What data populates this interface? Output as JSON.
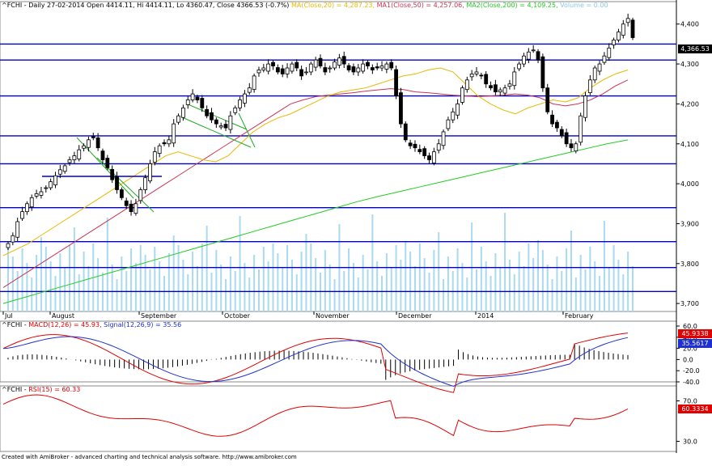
{
  "header": {
    "symbol": "^FCHI",
    "info": "^FCHI - Daily 27-02-2014 Open 4414.11, Hi 4414.11, Lo 4360.47, Close 4366.53 (-0.7%)",
    "ma20": "MA(Close,20) = 4,287.23,",
    "ma50": "MA1(Close,50) = 4,257.06,",
    "ma200": "MA2(Close,200) = 4,109.25,",
    "volume": "Volume = 0.00"
  },
  "colors": {
    "ma20": "#e8b800",
    "ma50": "#cc3355",
    "ma200": "#22cc22",
    "volume": "#aadaf0",
    "hlines": "#0000cc",
    "macd": "#e00000",
    "signal": "#2030d0",
    "rsi": "#e00000",
    "trend_channel": "#22aa22"
  },
  "price_axis": [
    "4,400",
    "4,300",
    "4,200",
    "4,100",
    "4,000",
    "3,900",
    "3,800",
    "3,700"
  ],
  "last_price_label": "4,366.53",
  "x_labels": [
    "Jul",
    "August",
    "September",
    "October",
    "November",
    "December",
    "2014",
    "February"
  ],
  "macd_panel": {
    "title_prefix": "^FCHI - ",
    "macd_label": "MACD(12,26) = 45.93,",
    "signal_label": "Signal(12,26,9) = 35.56",
    "axis": [
      "60.0",
      "40.0",
      "20.0",
      "0.0",
      "-20.0",
      "-40.0"
    ],
    "macd_box": "45.9338",
    "signal_box": "35.5617"
  },
  "rsi_panel": {
    "title_prefix": "^FCHI - ",
    "rsi_label": "RSI(15) = 60.33",
    "axis": [
      "70.0",
      "30.0"
    ],
    "rsi_box": "60.3334"
  },
  "footer": "Created with AmiBroker - advanced charting and technical analysis software. http://www.amibroker.com",
  "chart_data": {
    "type": "candlestick",
    "title": "^FCHI - Daily 27-02-2014",
    "ylim": [
      3680,
      4440
    ],
    "support_resistance_levels": [
      4350,
      4310,
      4220,
      4120,
      4050,
      3940,
      3855,
      3790,
      3730
    ],
    "closes": [
      3850,
      3870,
      3905,
      3930,
      3950,
      3965,
      3975,
      3980,
      3990,
      4005,
      4020,
      4035,
      4045,
      4060,
      4070,
      4085,
      4095,
      4110,
      4115,
      4090,
      4060,
      4040,
      4010,
      3985,
      3965,
      3945,
      3930,
      3950,
      3985,
      4015,
      4050,
      4080,
      4095,
      4100,
      4110,
      4150,
      4170,
      4190,
      4210,
      4225,
      4210,
      4190,
      4170,
      4160,
      4150,
      4145,
      4140,
      4170,
      4190,
      4210,
      4225,
      4240,
      4270,
      4285,
      4290,
      4300,
      4295,
      4280,
      4275,
      4290,
      4300,
      4290,
      4270,
      4280,
      4300,
      4310,
      4295,
      4280,
      4290,
      4305,
      4315,
      4300,
      4285,
      4280,
      4290,
      4300,
      4295,
      4285,
      4290,
      4295,
      4300,
      4290,
      4220,
      4150,
      4110,
      4095,
      4090,
      4080,
      4070,
      4060,
      4080,
      4100,
      4130,
      4160,
      4180,
      4200,
      4240,
      4260,
      4275,
      4280,
      4270,
      4250,
      4240,
      4230,
      4235,
      4240,
      4250,
      4280,
      4300,
      4320,
      4330,
      4335,
      4310,
      4240,
      4180,
      4150,
      4140,
      4120,
      4100,
      4090,
      4100,
      4170,
      4220,
      4260,
      4290,
      4300,
      4320,
      4340,
      4360,
      4380,
      4400,
      4414,
      4366
    ],
    "ma20": [
      3820,
      3835,
      3850,
      3870,
      3890,
      3910,
      3930,
      3950,
      3970,
      3990,
      4010,
      4030,
      4050,
      4070,
      4080,
      4070,
      4060,
      4055,
      4070,
      4100,
      4130,
      4150,
      4165,
      4175,
      4190,
      4205,
      4220,
      4230,
      4235,
      4240,
      4250,
      4260,
      4270,
      4275,
      4285,
      4290,
      4280,
      4250,
      4220,
      4200,
      4185,
      4175,
      4190,
      4200,
      4210,
      4205,
      4215,
      4240,
      4260,
      4275,
      4285
    ],
    "ma50": [
      3740,
      3760,
      3780,
      3800,
      3820,
      3840,
      3860,
      3880,
      3900,
      3920,
      3940,
      3960,
      3980,
      4000,
      4020,
      4040,
      4060,
      4080,
      4100,
      4120,
      4140,
      4160,
      4180,
      4200,
      4210,
      4218,
      4222,
      4225,
      4228,
      4232,
      4235,
      4238,
      4236,
      4230,
      4228,
      4225,
      4222,
      4220,
      4218,
      4220,
      4222,
      4225,
      4222,
      4215,
      4200,
      4195,
      4200,
      4210,
      4225,
      4245,
      4260
    ],
    "ma200": [
      3700,
      3715,
      3730,
      3745,
      3760,
      3775,
      3790,
      3805,
      3820,
      3835,
      3850,
      3865,
      3880,
      3895,
      3910,
      3925,
      3940,
      3955,
      3968,
      3980,
      3992,
      4004,
      4016,
      4028,
      4040,
      4052,
      4064,
      4076,
      4088,
      4100,
      4110
    ]
  }
}
